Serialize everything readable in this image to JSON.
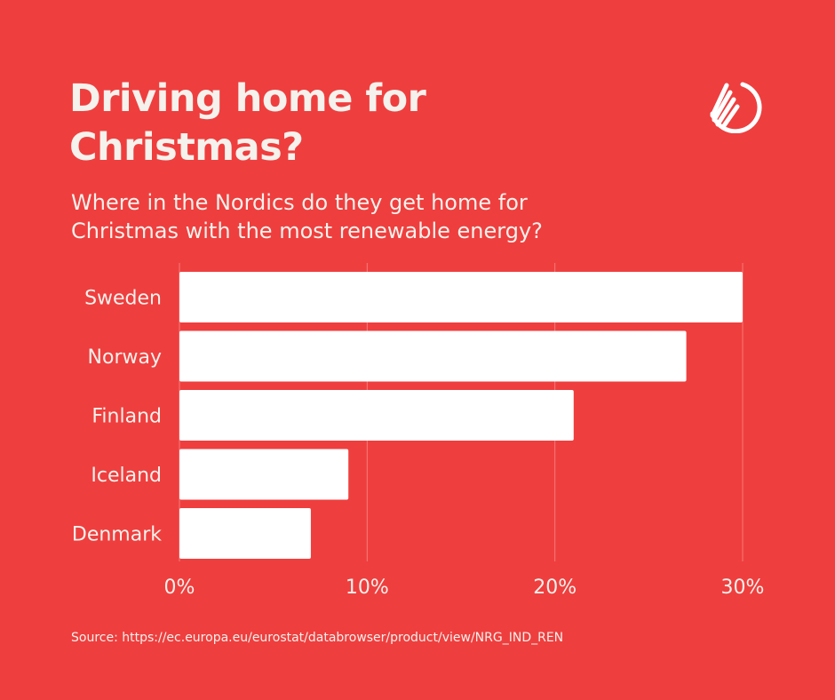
{
  "header": {
    "title_lines": [
      "Driving home for",
      "Christmas?"
    ],
    "subtitle_lines": [
      "Where in the Nordics do they get home for",
      "Christmas with the most renewable energy?"
    ]
  },
  "logo": {
    "icon": "nordic-swan-logo-icon",
    "color": "#ffffff"
  },
  "colors": {
    "background": "#ef3e3e",
    "bar": "#ffffff",
    "text": "#f5f1ec",
    "grid": "#f47a78"
  },
  "chart_data": {
    "type": "bar",
    "orientation": "horizontal",
    "categories": [
      "Sweden",
      "Norway",
      "Finland",
      "Iceland",
      "Denmark"
    ],
    "values": [
      30,
      27,
      21,
      9,
      7
    ],
    "unit": "%",
    "xlim": [
      0,
      30
    ],
    "xticks": [
      0,
      10,
      20,
      30
    ],
    "xtick_labels": [
      "0%",
      "10%",
      "20%",
      "30%"
    ],
    "grid": true
  },
  "footer": {
    "source": "Source: https://ec.europa.eu/eurostat/databrowser/product/view/NRG_IND_REN"
  }
}
